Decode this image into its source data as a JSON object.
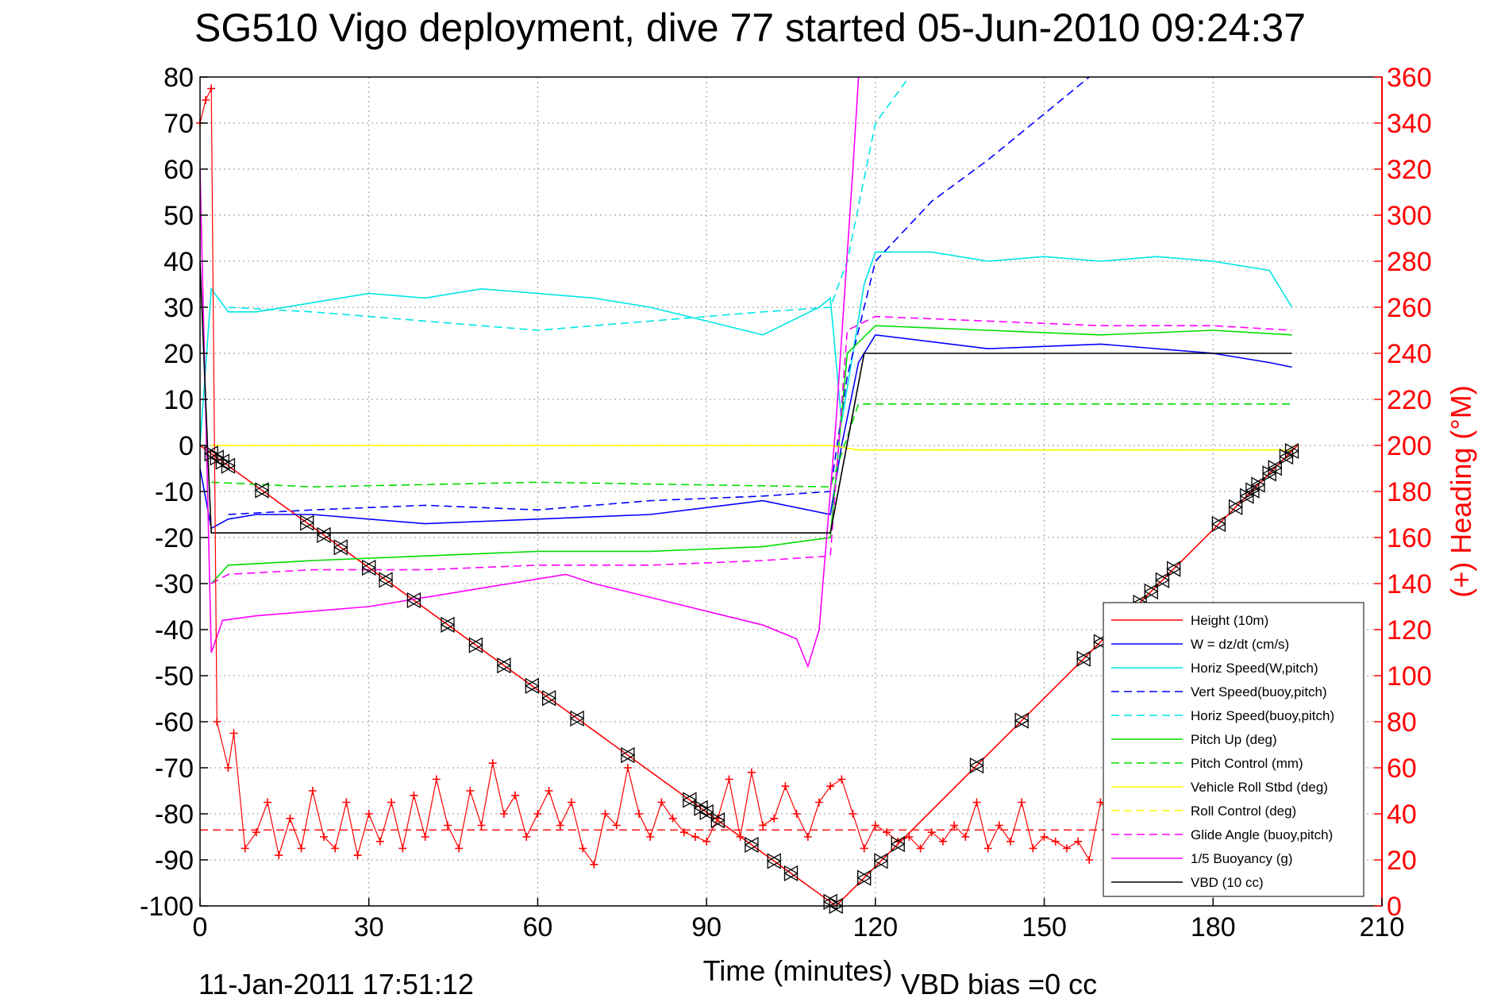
{
  "chart_data": {
    "type": "line",
    "title": "SG510 Vigo deployment, dive 77 started 05-Jun-2010 09:24:37",
    "xlabel": "Time (minutes)",
    "ylabel_right": "(+) Heading (°M)",
    "footer_left": "11-Jan-2011 17:51:12",
    "footer_right": "VBD bias =0 cc",
    "xlim": [
      0,
      210
    ],
    "ylim": [
      -100,
      80
    ],
    "y2lim": [
      0,
      360
    ],
    "xticks": [
      0,
      30,
      60,
      90,
      120,
      150,
      180,
      210
    ],
    "yticks": [
      80,
      70,
      60,
      50,
      40,
      30,
      20,
      10,
      0,
      -10,
      -20,
      -30,
      -40,
      -50,
      -60,
      -70,
      -80,
      -90,
      -100
    ],
    "y2ticks": [
      360,
      340,
      320,
      300,
      280,
      260,
      240,
      220,
      200,
      180,
      160,
      140,
      120,
      100,
      80,
      60,
      40,
      20,
      0
    ],
    "grid": true,
    "legend_position": "bottom-right",
    "series": [
      {
        "name": "Height (10m)",
        "color": "#ff0000",
        "style": "solid",
        "x": [
          0,
          113,
          195
        ],
        "y": [
          0,
          -100,
          0
        ]
      },
      {
        "name": "W = dz/dt (cm/s)",
        "color": "#0000ff",
        "style": "solid",
        "x": [
          0,
          2,
          5,
          10,
          20,
          40,
          60,
          80,
          100,
          112,
          114,
          117,
          120,
          140,
          160,
          180,
          190,
          194
        ],
        "y": [
          -5,
          -18,
          -16,
          -15,
          -15,
          -17,
          -16,
          -15,
          -12,
          -15,
          0,
          18,
          24,
          21,
          22,
          20,
          18,
          17
        ]
      },
      {
        "name": "Horiz Speed(W,pitch)",
        "color": "#00e5e5",
        "style": "solid",
        "x": [
          0,
          2,
          5,
          10,
          20,
          30,
          40,
          50,
          60,
          70,
          80,
          90,
          100,
          110,
          112,
          114,
          118,
          120,
          130,
          140,
          150,
          160,
          170,
          180,
          190,
          194
        ],
        "y": [
          0,
          34,
          29,
          29,
          31,
          33,
          32,
          34,
          33,
          32,
          30,
          27,
          24,
          30,
          32,
          5,
          35,
          42,
          42,
          40,
          41,
          40,
          41,
          40,
          38,
          30
        ]
      },
      {
        "name": "Vert Speed(buoy,pitch)",
        "color": "#0000ff",
        "style": "dashed",
        "x": [
          5,
          20,
          40,
          60,
          80,
          100,
          112,
          115,
          120,
          130,
          140,
          150,
          158
        ],
        "y": [
          -15,
          -14,
          -13,
          -14,
          -12,
          -11,
          -10,
          15,
          40,
          53,
          62,
          72,
          80
        ]
      },
      {
        "name": "Horiz Speed(buoy,pitch)",
        "color": "#00e5e5",
        "style": "dashed",
        "x": [
          5,
          20,
          40,
          60,
          80,
          100,
          112,
          115,
          120,
          126
        ],
        "y": [
          30,
          29,
          27,
          25,
          27,
          29,
          30,
          40,
          70,
          80
        ]
      },
      {
        "name": "Pitch Up (deg)",
        "color": "#00dd00",
        "style": "solid",
        "x": [
          2,
          5,
          20,
          40,
          60,
          80,
          100,
          112,
          115,
          120,
          140,
          160,
          180,
          194
        ],
        "y": [
          -30,
          -26,
          -25,
          -24,
          -23,
          -23,
          -22,
          -20,
          20,
          26,
          25,
          24,
          25,
          24
        ]
      },
      {
        "name": "Pitch Control (mm)",
        "color": "#00dd00",
        "style": "dashed",
        "x": [
          2,
          20,
          60,
          112,
          117,
          140,
          180,
          194
        ],
        "y": [
          -8,
          -9,
          -8,
          -9,
          9,
          9,
          9,
          9
        ]
      },
      {
        "name": "Vehicle Roll Stbd (deg)",
        "color": "#ffff00",
        "style": "solid",
        "x": [
          2,
          20,
          60,
          112,
          117,
          160,
          194
        ],
        "y": [
          0,
          0,
          0,
          0,
          -1,
          -1,
          -1
        ]
      },
      {
        "name": "Roll Control (deg)",
        "color": "#ffff00",
        "style": "dashed",
        "x": [
          2,
          112,
          117,
          194
        ],
        "y": [
          0,
          0,
          -1,
          -1
        ]
      },
      {
        "name": "Glide Angle (buoy,pitch)",
        "color": "#ff00ff",
        "style": "dashed",
        "x": [
          2,
          5,
          20,
          40,
          60,
          80,
          100,
          112,
          115,
          120,
          140,
          160,
          180,
          194
        ],
        "y": [
          -30,
          -28,
          -27,
          -27,
          -26,
          -26,
          -25,
          -24,
          25,
          28,
          27,
          26,
          26,
          25
        ]
      },
      {
        "name": "1/5 Buoyancy (g)",
        "color": "#ff00ff",
        "style": "solid",
        "x": [
          0,
          2,
          4,
          10,
          20,
          30,
          40,
          50,
          60,
          65,
          70,
          80,
          90,
          100,
          106,
          108,
          110,
          113,
          116,
          117
        ],
        "y": [
          60,
          -45,
          -38,
          -37,
          -36,
          -35,
          -33,
          -31,
          -29,
          -28,
          -30,
          -33,
          -36,
          -39,
          -42,
          -48,
          -40,
          5,
          60,
          80
        ]
      },
      {
        "name": "VBD (10 cc)",
        "color": "#000000",
        "style": "solid",
        "x": [
          0,
          1.5,
          2,
          112,
          114,
          118,
          194
        ],
        "y": [
          40,
          -5,
          -19,
          -19,
          -6,
          20,
          20
        ]
      }
    ],
    "heading": {
      "name": "(+) Heading",
      "color": "#ff0000",
      "marker": "+",
      "mean": 33,
      "x": [
        0,
        1,
        2,
        3,
        5,
        6,
        8,
        10,
        12,
        14,
        16,
        18,
        20,
        22,
        24,
        26,
        28,
        30,
        32,
        34,
        36,
        38,
        40,
        42,
        44,
        46,
        48,
        50,
        52,
        54,
        56,
        58,
        60,
        62,
        64,
        66,
        68,
        70,
        72,
        74,
        76,
        78,
        80,
        82,
        84,
        86,
        88,
        90,
        92,
        94,
        96,
        98,
        100,
        102,
        104,
        106,
        108,
        110,
        112,
        114,
        116,
        118,
        120,
        122,
        124,
        126,
        128,
        130,
        132,
        134,
        136,
        138,
        140,
        142,
        144,
        146,
        148,
        150,
        152,
        154,
        156,
        158,
        160,
        162
      ],
      "y": [
        340,
        350,
        355,
        80,
        60,
        75,
        25,
        32,
        45,
        22,
        38,
        25,
        50,
        30,
        25,
        45,
        22,
        40,
        28,
        45,
        25,
        48,
        30,
        55,
        35,
        25,
        50,
        35,
        62,
        40,
        48,
        30,
        40,
        50,
        35,
        45,
        25,
        18,
        40,
        35,
        60,
        40,
        30,
        45,
        38,
        32,
        30,
        28,
        38,
        55,
        30,
        58,
        35,
        38,
        52,
        40,
        30,
        45,
        52,
        55,
        40,
        25,
        35,
        32,
        28,
        30,
        25,
        32,
        28,
        35,
        30,
        45,
        25,
        35,
        28,
        45,
        25,
        30,
        28,
        25,
        28,
        20,
        45,
        40
      ]
    },
    "vbd_markers_x": [
      2,
      3,
      4,
      5,
      11,
      19,
      22,
      25,
      30,
      33,
      38,
      44,
      49,
      54,
      59,
      62,
      67,
      76,
      87,
      89,
      90,
      92,
      98,
      102,
      105,
      112,
      113,
      118,
      121,
      124,
      138,
      146,
      157,
      160,
      167,
      169,
      171,
      173,
      181,
      184,
      186,
      187,
      188,
      190,
      191,
      193,
      194
    ]
  }
}
